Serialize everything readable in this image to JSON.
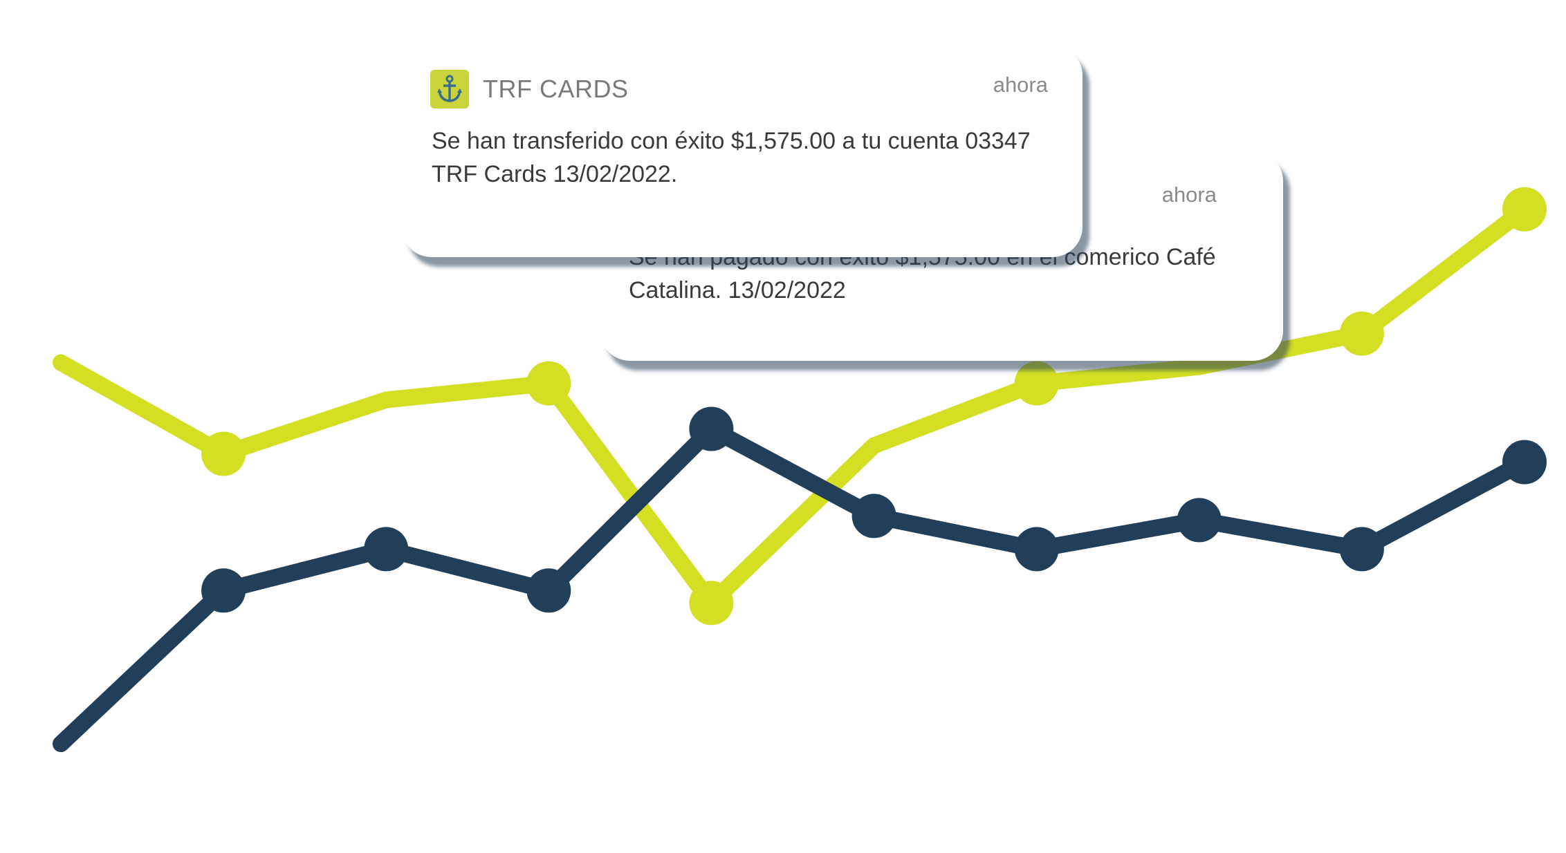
{
  "chart_data": {
    "type": "line",
    "x": [
      1,
      2,
      3,
      4,
      5,
      6,
      7,
      8,
      9,
      10
    ],
    "series": [
      {
        "color": "#d4de23",
        "values": [
          72,
          50,
          63,
          67,
          14,
          52,
          67,
          71,
          79,
          109
        ],
        "markers": [
          false,
          true,
          false,
          true,
          true,
          false,
          true,
          false,
          true,
          true
        ]
      },
      {
        "color": "#223f5a",
        "values": [
          -20,
          17,
          27,
          17,
          56,
          35,
          27,
          34,
          27,
          48
        ],
        "markers": [
          false,
          true,
          true,
          true,
          true,
          true,
          true,
          true,
          true,
          true
        ]
      }
    ],
    "ylim": [
      -40,
      150
    ],
    "grid": false,
    "legend": "none"
  },
  "notifications": [
    {
      "app_icon": "anchor-icon",
      "app_name": "TRF CARDS",
      "time": "ahora",
      "body": "Se han transferido con éxito $1,575.00 a tu cuenta 03347 TRF Cards 13/02/2022."
    },
    {
      "time": "ahora",
      "body": "Se han pagado con éxito $1,575.00 en el comerico Café Catalina. 13/02/2022"
    }
  ]
}
